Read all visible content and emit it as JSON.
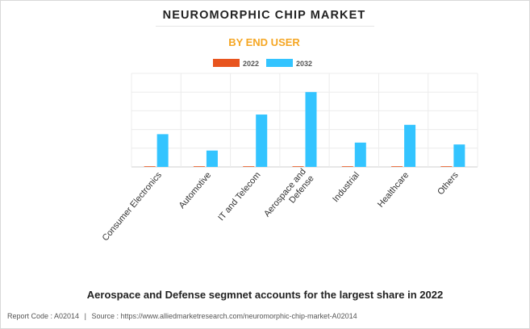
{
  "header": {
    "title": "NEUROMORPHIC CHIP MARKET",
    "subtitle": "BY END USER"
  },
  "chart_data": {
    "type": "bar",
    "categories": [
      [
        "Consumer Electronics"
      ],
      [
        "Automotive"
      ],
      [
        "IT and Telecom"
      ],
      [
        "Aerospace and",
        "Defense"
      ],
      [
        "Industrial"
      ],
      [
        "Healthcare"
      ],
      [
        "Others"
      ]
    ],
    "series": [
      {
        "name": "2022",
        "color": "#e8541e",
        "values": [
          0.1,
          0.1,
          0.5,
          0.5,
          0.1,
          0.1,
          0.1
        ]
      },
      {
        "name": "2032",
        "color": "#33c4ff",
        "values": [
          35,
          17.5,
          56,
          80,
          26,
          45,
          24
        ]
      }
    ],
    "ylim": [
      0,
      100
    ],
    "grid": true,
    "legend": "top-center"
  },
  "caption": "Aerospace and Defense segmnet accounts for the largest share in 2022",
  "footer": {
    "report_code": "Report Code : A02014",
    "separator": "|",
    "source": "Source : https://www.alliedmarketresearch.com/neuromorphic-chip-market-A02014"
  }
}
